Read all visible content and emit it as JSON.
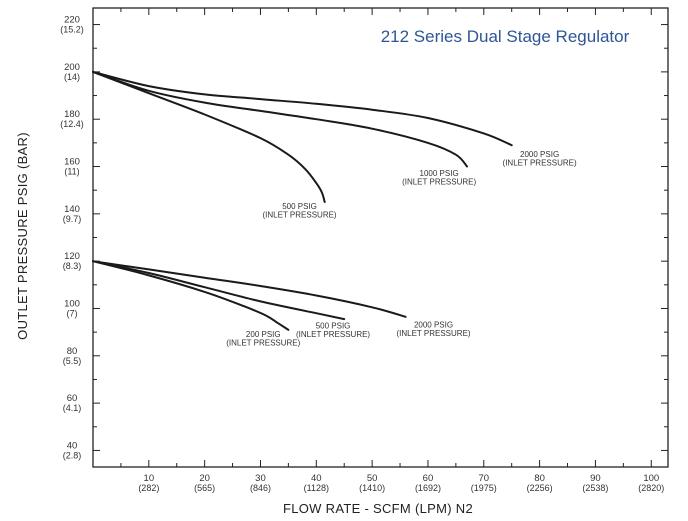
{
  "chart_data": {
    "type": "line",
    "title": "212 Series Dual Stage Regulator",
    "xlabel": "FLOW RATE - SCFM (LPM) N2",
    "ylabel": "OUTLET PRESSURE PSIG (BAR)",
    "xlim": [
      0,
      103
    ],
    "ylim": [
      33,
      227
    ],
    "grid": false,
    "x_ticks": [
      {
        "value": 10,
        "label": "10",
        "sub": "(282)"
      },
      {
        "value": 20,
        "label": "20",
        "sub": "(565)"
      },
      {
        "value": 30,
        "label": "30",
        "sub": "(846)"
      },
      {
        "value": 40,
        "label": "40",
        "sub": "(1128)"
      },
      {
        "value": 50,
        "label": "50",
        "sub": "(1410)"
      },
      {
        "value": 60,
        "label": "60",
        "sub": "(1692)"
      },
      {
        "value": 70,
        "label": "70",
        "sub": "(1975)"
      },
      {
        "value": 80,
        "label": "80",
        "sub": "(2256)"
      },
      {
        "value": 90,
        "label": "90",
        "sub": "(2538)"
      },
      {
        "value": 100,
        "label": "100",
        "sub": "(2820)"
      }
    ],
    "y_ticks": [
      {
        "value": 220,
        "label": "220",
        "sub": "(15.2)"
      },
      {
        "value": 200,
        "label": "200",
        "sub": "(14)"
      },
      {
        "value": 180,
        "label": "180",
        "sub": "(12.4)"
      },
      {
        "value": 160,
        "label": "160",
        "sub": "(11)"
      },
      {
        "value": 140,
        "label": "140",
        "sub": "(9.7)"
      },
      {
        "value": 120,
        "label": "120",
        "sub": "(8.3)"
      },
      {
        "value": 100,
        "label": "100",
        "sub": "(7)"
      },
      {
        "value": 80,
        "label": "80",
        "sub": "(5.5)"
      },
      {
        "value": 60,
        "label": "60",
        "sub": "(4.1)"
      },
      {
        "value": 40,
        "label": "40",
        "sub": "(2.8)"
      }
    ],
    "series": [
      {
        "label_lines": [
          "2000 PSIG",
          "(INLET PRESSURE)"
        ],
        "label_anchor": {
          "x": 80,
          "y": 164
        },
        "x": [
          0,
          10,
          20,
          30,
          40,
          50,
          60,
          70,
          75
        ],
        "y": [
          200,
          194,
          190.5,
          188.5,
          186.5,
          184,
          180.5,
          174,
          169
        ]
      },
      {
        "label_lines": [
          "1000 PSIG",
          "(INLET PRESSURE)"
        ],
        "label_anchor": {
          "x": 62,
          "y": 156
        },
        "x": [
          0,
          10,
          20,
          30,
          40,
          50,
          60,
          65,
          67
        ],
        "y": [
          200,
          192,
          187,
          183.5,
          180,
          176,
          170,
          165,
          160
        ]
      },
      {
        "label_lines": [
          "500 PSIG",
          "(INLET PRESSURE)"
        ],
        "label_anchor": {
          "x": 37,
          "y": 142
        },
        "x": [
          0,
          10,
          20,
          30,
          35,
          38,
          40,
          41,
          41.5
        ],
        "y": [
          200,
          191,
          182,
          172,
          165,
          159,
          153,
          149,
          145
        ]
      },
      {
        "label_lines": [
          "2000 PSIG",
          "(INLET PRESSURE)"
        ],
        "label_anchor": {
          "x": 61,
          "y": 92
        },
        "x": [
          0,
          10,
          20,
          30,
          40,
          50,
          56
        ],
        "y": [
          120,
          116.5,
          113,
          109.5,
          105.5,
          100.5,
          96.5
        ]
      },
      {
        "label_lines": [
          "500 PSIG",
          "(INLET PRESSURE)"
        ],
        "label_anchor": {
          "x": 43,
          "y": 91.5
        },
        "x": [
          0,
          10,
          20,
          30,
          40,
          45
        ],
        "y": [
          120,
          115,
          109,
          103,
          98,
          95.5
        ]
      },
      {
        "label_lines": [
          "200 PSIG",
          "(INLET PRESSURE)"
        ],
        "label_anchor": {
          "x": 30.5,
          "y": 88
        },
        "x": [
          0,
          10,
          20,
          27,
          31,
          33,
          35
        ],
        "y": [
          120,
          114,
          107,
          101,
          97,
          94,
          91
        ]
      }
    ]
  }
}
